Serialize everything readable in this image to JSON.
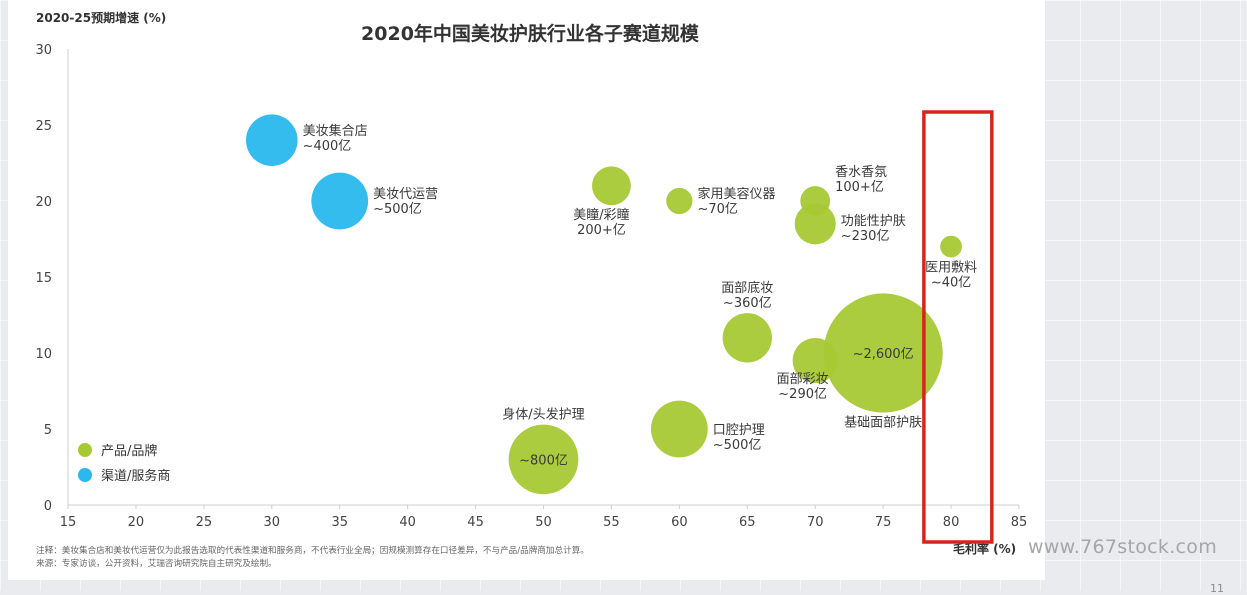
{
  "chart_data": {
    "type": "bubble",
    "title": "2020年中国美妆护肤行业各子赛道规模",
    "ylabel": "2020-25预期增速 (%)",
    "xlabel": "毛利率 (%)",
    "xlim": [
      15,
      85
    ],
    "ylim": [
      0,
      30
    ],
    "xticks": [
      "15",
      "20",
      "25",
      "30",
      "35",
      "40",
      "45",
      "50",
      "55",
      "60",
      "65",
      "70",
      "75",
      "80",
      "85"
    ],
    "yticks": [
      "0",
      "5",
      "10",
      "15",
      "20",
      "25",
      "30"
    ],
    "legend": [
      {
        "name": "产品/品牌",
        "color": "#a7c934"
      },
      {
        "name": "渠道/服务商",
        "color": "#2ab8ee"
      }
    ],
    "legend_position": "bottom-left",
    "series": [
      {
        "name": "产品/品牌",
        "points": [
          {
            "x": 50,
            "y": 3,
            "size": 800,
            "label": [
              "身体/头发护理"
            ],
            "inner": "~800亿"
          },
          {
            "x": 60,
            "y": 5,
            "size": 500,
            "label": [
              "口腔护理",
              "~500亿"
            ]
          },
          {
            "x": 55,
            "y": 21,
            "size": 200,
            "label": [
              "美瞳/彩瞳",
              "200+亿"
            ]
          },
          {
            "x": 60,
            "y": 20,
            "size": 70,
            "label": [
              "家用美容仪器",
              "~70亿"
            ]
          },
          {
            "x": 65,
            "y": 11,
            "size": 360,
            "label": [
              "面部底妆",
              "~360亿"
            ]
          },
          {
            "x": 70,
            "y": 9.5,
            "size": 290,
            "label": [
              "面部彩妆",
              "~290亿"
            ]
          },
          {
            "x": 70,
            "y": 20,
            "size": 100,
            "label": [
              "香水香氛",
              "100+亿"
            ]
          },
          {
            "x": 70,
            "y": 18.5,
            "size": 230,
            "label": [
              "功能性护肤",
              "~230亿"
            ]
          },
          {
            "x": 75,
            "y": 10,
            "size": 2600,
            "label": [
              "基础面部护肤"
            ],
            "inner": "~2,600亿"
          },
          {
            "x": 80,
            "y": 17,
            "size": 40,
            "label": [
              "医用敷料",
              "~40亿"
            ]
          }
        ]
      },
      {
        "name": "渠道/服务商",
        "points": [
          {
            "x": 30,
            "y": 24,
            "size": 400,
            "label": [
              "美妆集合店",
              "~400亿"
            ]
          },
          {
            "x": 35,
            "y": 20,
            "size": 500,
            "label": [
              "美妆代运营",
              "~500亿"
            ]
          }
        ]
      }
    ],
    "highlight": {
      "x_from": 78,
      "x_to": 83,
      "color": "#d9231d"
    },
    "notes": [
      "注释：美妆集合店和美妆代运营仅为此报告选取的代表性渠道和服务商，不代表行业全局；因规模测算存在口径差异，不与产品/品牌商加总计算。",
      "来源：专家访谈，公开资料，艾瑞咨询研究院自主研究及绘制。"
    ]
  },
  "watermark": "www.767stock.com",
  "page_number": "11"
}
